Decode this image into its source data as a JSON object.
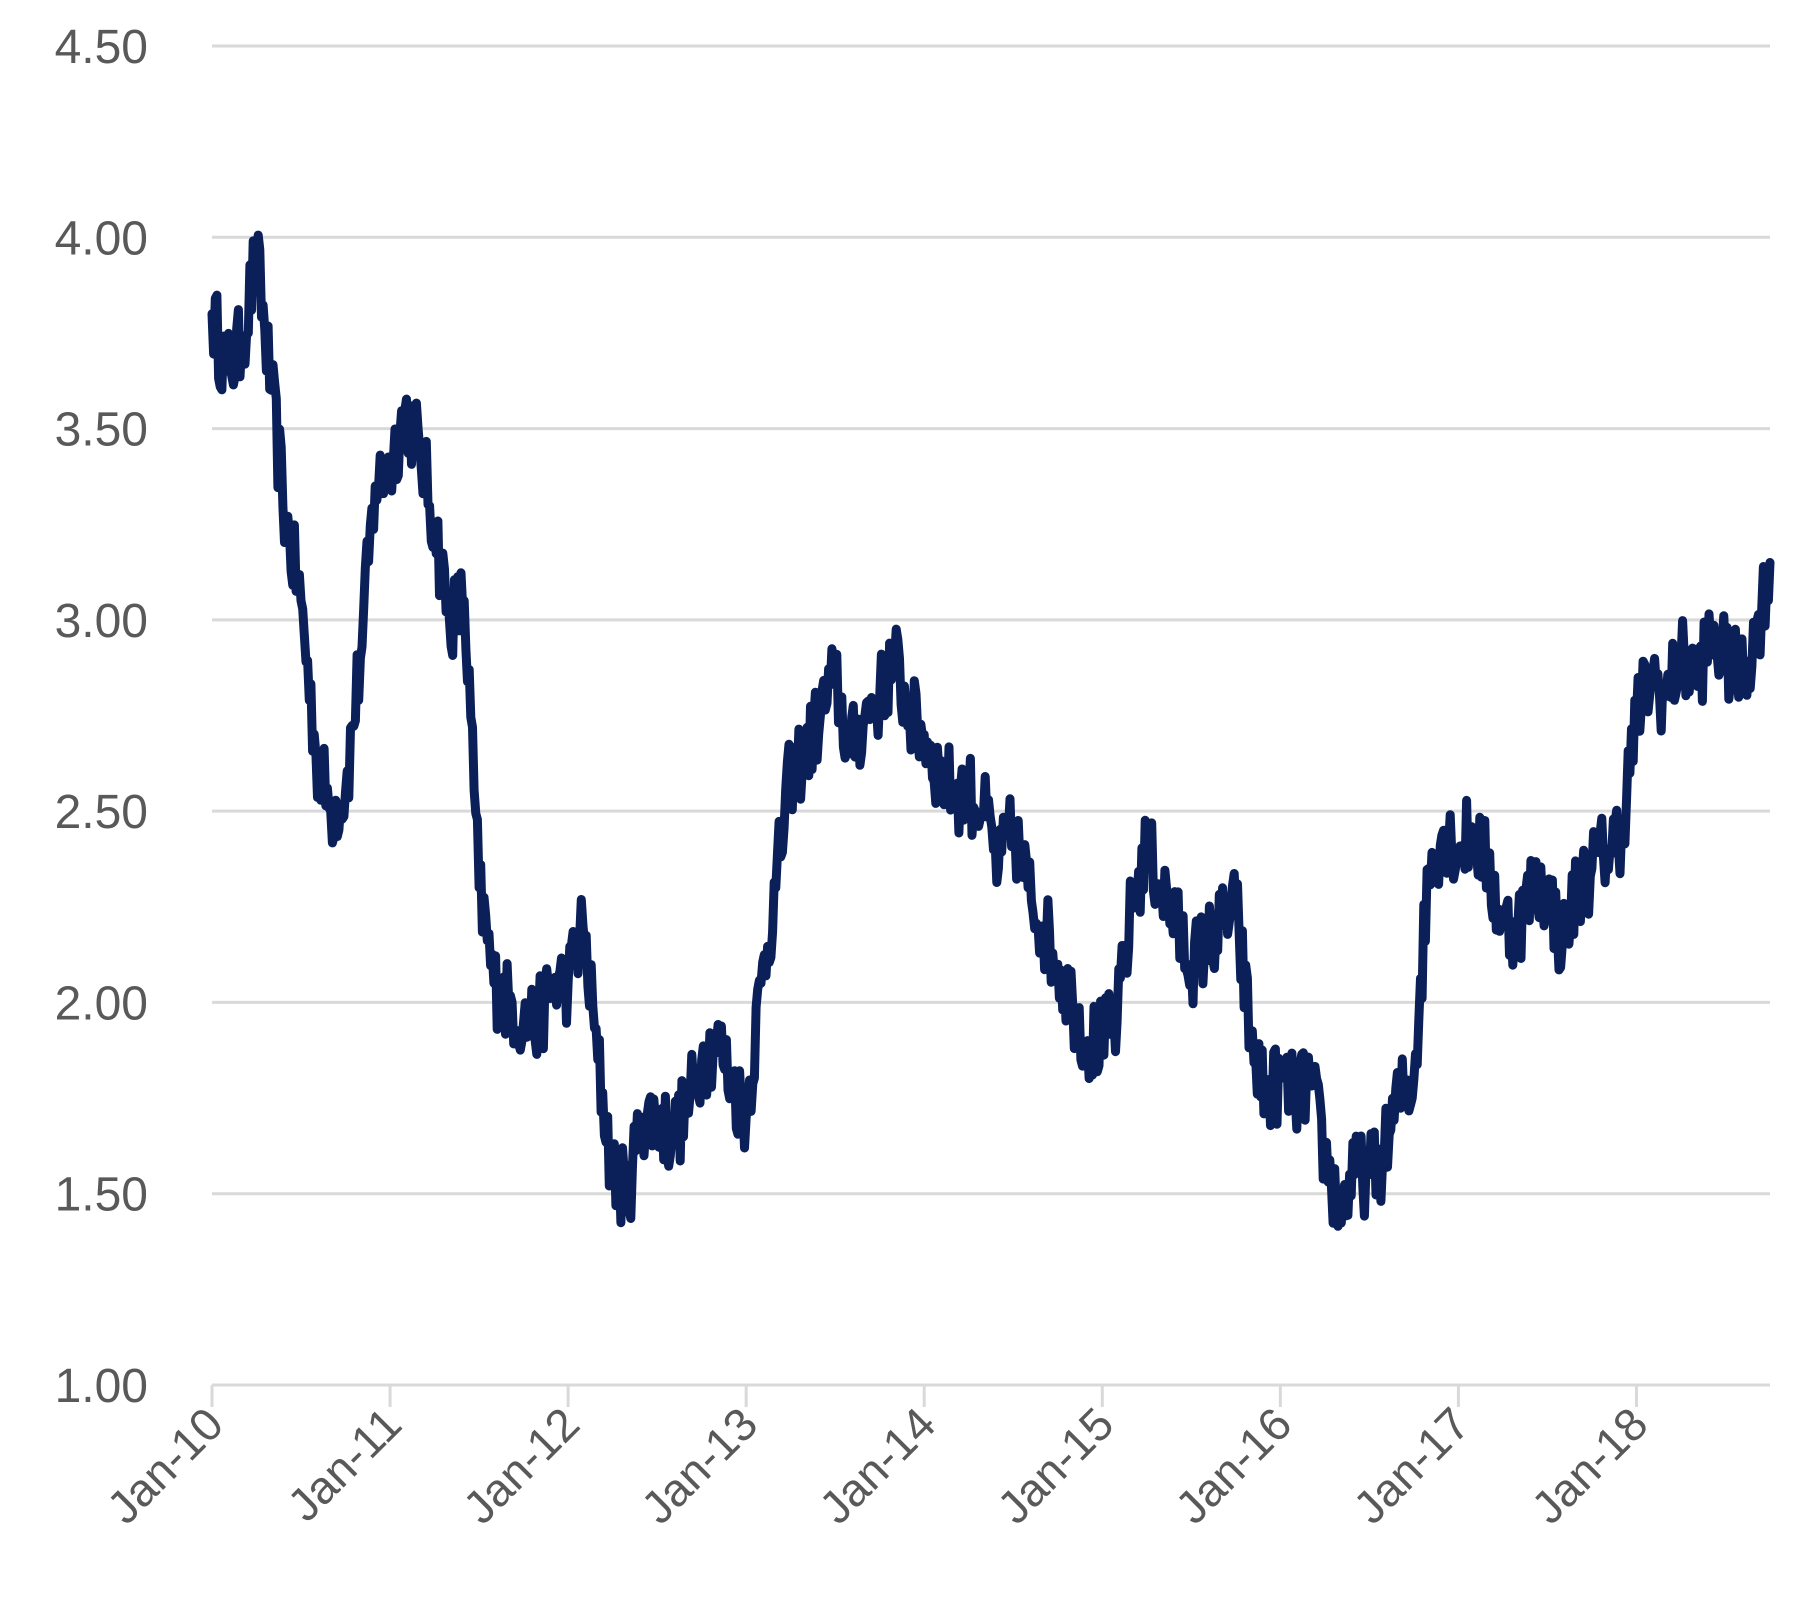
{
  "chart_data": {
    "type": "line",
    "title": "",
    "xlabel": "",
    "ylabel": "",
    "ylim": [
      1.0,
      4.5
    ],
    "xlim": [
      "2010-01",
      "2018-10"
    ],
    "grid": true,
    "y_ticks": [
      "1.00",
      "1.50",
      "2.00",
      "2.50",
      "3.00",
      "3.50",
      "4.00",
      "4.50"
    ],
    "y_tick_values": [
      1.0,
      1.5,
      2.0,
      2.5,
      3.0,
      3.5,
      4.0,
      4.5
    ],
    "x_ticks": [
      "Jan-10",
      "Jan-11",
      "Jan-12",
      "Jan-13",
      "Jan-14",
      "Jan-15",
      "Jan-16",
      "Jan-17",
      "Jan-18"
    ],
    "x_tick_dates": [
      "2010-01",
      "2011-01",
      "2012-01",
      "2013-01",
      "2014-01",
      "2015-01",
      "2016-01",
      "2017-01",
      "2018-01"
    ],
    "series": [
      {
        "color": "#0b2059",
        "x": [
          "2010-01",
          "2010-02",
          "2010-03",
          "2010-04",
          "2010-05",
          "2010-06",
          "2010-07",
          "2010-08",
          "2010-09",
          "2010-10",
          "2010-11",
          "2010-12",
          "2011-01",
          "2011-02",
          "2011-03",
          "2011-04",
          "2011-05",
          "2011-06",
          "2011-07",
          "2011-08",
          "2011-09",
          "2011-10",
          "2011-11",
          "2011-12",
          "2012-01",
          "2012-02",
          "2012-03",
          "2012-04",
          "2012-05",
          "2012-06",
          "2012-07",
          "2012-08",
          "2012-09",
          "2012-10",
          "2012-11",
          "2012-12",
          "2013-01",
          "2013-02",
          "2013-03",
          "2013-04",
          "2013-05",
          "2013-06",
          "2013-07",
          "2013-08",
          "2013-09",
          "2013-10",
          "2013-11",
          "2013-12",
          "2014-01",
          "2014-02",
          "2014-03",
          "2014-04",
          "2014-05",
          "2014-06",
          "2014-07",
          "2014-08",
          "2014-09",
          "2014-10",
          "2014-11",
          "2014-12",
          "2015-01",
          "2015-02",
          "2015-03",
          "2015-04",
          "2015-05",
          "2015-06",
          "2015-07",
          "2015-08",
          "2015-09",
          "2015-10",
          "2015-11",
          "2015-12",
          "2016-01",
          "2016-02",
          "2016-03",
          "2016-04",
          "2016-05",
          "2016-06",
          "2016-07",
          "2016-08",
          "2016-09",
          "2016-10",
          "2016-11",
          "2016-12",
          "2017-01",
          "2017-02",
          "2017-03",
          "2017-04",
          "2017-05",
          "2017-06",
          "2017-07",
          "2017-08",
          "2017-09",
          "2017-10",
          "2017-11",
          "2017-12",
          "2018-01",
          "2018-02",
          "2018-03",
          "2018-04",
          "2018-05",
          "2018-06",
          "2018-07",
          "2018-08",
          "2018-09",
          "2018-10"
        ],
        "values": [
          3.8,
          3.65,
          3.72,
          3.95,
          3.6,
          3.25,
          3.05,
          2.65,
          2.5,
          2.55,
          2.9,
          3.35,
          3.4,
          3.55,
          3.45,
          3.25,
          3.0,
          3.05,
          2.3,
          2.05,
          2.0,
          1.95,
          1.95,
          2.05,
          2.05,
          2.2,
          1.85,
          1.55,
          1.5,
          1.7,
          1.7,
          1.65,
          1.72,
          1.85,
          1.9,
          1.8,
          1.7,
          2.05,
          2.3,
          2.6,
          2.65,
          2.75,
          2.85,
          2.65,
          2.75,
          2.8,
          2.9,
          2.75,
          2.7,
          2.6,
          2.55,
          2.55,
          2.5,
          2.35,
          2.45,
          2.3,
          2.2,
          2.1,
          2.0,
          1.9,
          1.9,
          1.95,
          2.25,
          2.4,
          2.3,
          2.2,
          2.1,
          2.15,
          2.2,
          2.25,
          1.9,
          1.75,
          1.8,
          1.75,
          1.8,
          1.6,
          1.45,
          1.55,
          1.55,
          1.6,
          1.75,
          1.8,
          2.35,
          2.45,
          2.4,
          2.45,
          2.35,
          2.2,
          2.2,
          2.3,
          2.3,
          2.15,
          2.3,
          2.35,
          2.4,
          2.45,
          2.75,
          2.85,
          2.8,
          2.9,
          2.85,
          2.95,
          2.9,
          2.85,
          2.95,
          3.15
        ]
      }
    ]
  }
}
